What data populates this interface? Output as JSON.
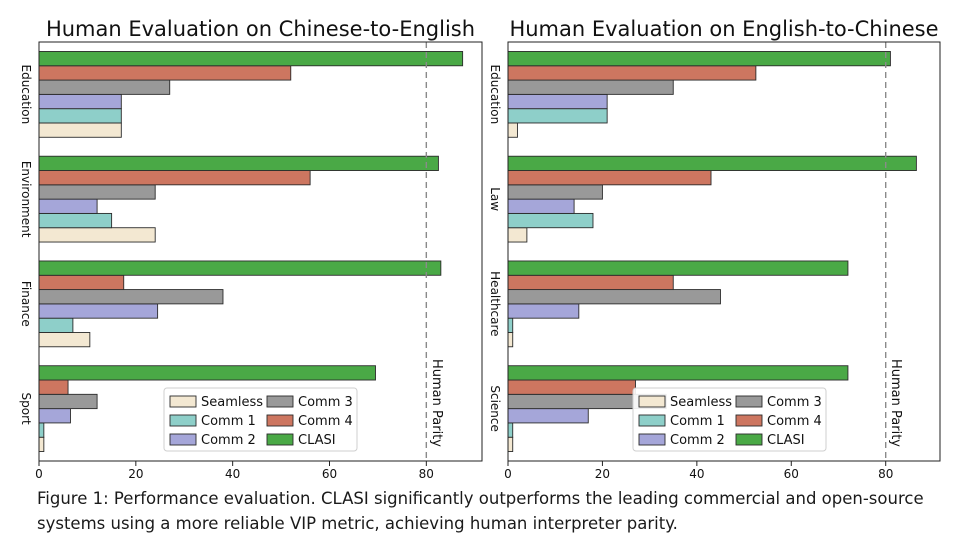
{
  "chart_data": [
    {
      "type": "bar",
      "orientation": "horizontal",
      "title": "Human Evaluation on Chinese-to-English",
      "categories": [
        "Education",
        "Environment",
        "Finance",
        "Sport"
      ],
      "series": [
        {
          "name": "Seamless",
          "values": [
            17,
            24,
            10.5,
            1
          ],
          "color": "#f3e8d2"
        },
        {
          "name": "Comm 1",
          "values": [
            17,
            15,
            7,
            1
          ],
          "color": "#8ecfc9"
        },
        {
          "name": "Comm 2",
          "values": [
            17,
            12,
            24.5,
            6.5
          ],
          "color": "#a5a6d9"
        },
        {
          "name": "Comm 3",
          "values": [
            27,
            24,
            38,
            12
          ],
          "color": "#999999"
        },
        {
          "name": "Comm 4",
          "values": [
            52,
            56,
            17.5,
            6
          ],
          "color": "#cd7660"
        },
        {
          "name": "CLASI",
          "values": [
            87.5,
            82.5,
            83,
            69.5
          ],
          "color": "#4aa946"
        }
      ],
      "xlim": [
        0,
        91.5
      ],
      "xticks": [
        0,
        20,
        40,
        60,
        80
      ],
      "reference_line": {
        "x": 80,
        "label": "Human Parity"
      },
      "legend": "lower-right",
      "grid": false
    },
    {
      "type": "bar",
      "orientation": "horizontal",
      "title": "Human Evaluation on English-to-Chinese",
      "categories": [
        "Education",
        "Law",
        "Healthcare",
        "Science"
      ],
      "series": [
        {
          "name": "Seamless",
          "values": [
            2,
            4,
            1,
            1
          ],
          "color": "#f3e8d2"
        },
        {
          "name": "Comm 1",
          "values": [
            21,
            18,
            1,
            1
          ],
          "color": "#8ecfc9"
        },
        {
          "name": "Comm 2",
          "values": [
            21,
            14,
            15,
            17
          ],
          "color": "#a5a6d9"
        },
        {
          "name": "Comm 3",
          "values": [
            35,
            20,
            45,
            33.5
          ],
          "color": "#999999"
        },
        {
          "name": "Comm 4",
          "values": [
            52.5,
            43,
            35,
            27
          ],
          "color": "#cd7660"
        },
        {
          "name": "CLASI",
          "values": [
            81,
            86.5,
            72,
            72
          ],
          "color": "#4aa946"
        }
      ],
      "xlim": [
        0,
        91.5
      ],
      "xticks": [
        0,
        20,
        40,
        60,
        80
      ],
      "reference_line": {
        "x": 80,
        "label": "Human Parity"
      },
      "legend": "lower-right",
      "grid": false
    }
  ],
  "caption": "Figure 1: Performance evaluation. CLASI significantly outperforms the leading commercial and open-source systems using a more reliable VIP metric, achieving human interpreter parity."
}
